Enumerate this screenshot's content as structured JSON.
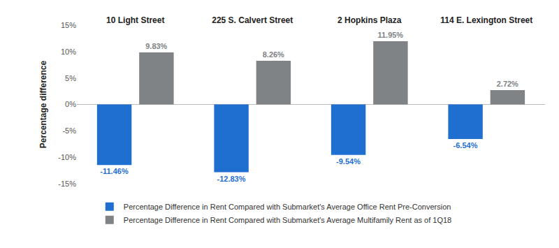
{
  "chart_data": {
    "type": "bar",
    "categories": [
      "10 Light Street",
      "225 S. Calvert Street",
      "2 Hopkins Plaza",
      "114 E. Lexington Street"
    ],
    "series": [
      {
        "name": "Percentage Difference in Rent Compared with Submarket's Average Office Rent Pre-Conversion",
        "color": "#1f6fd1",
        "values": [
          -11.46,
          -12.83,
          -9.54,
          -6.54
        ],
        "value_labels": [
          "-11.46%",
          "-12.83%",
          "-9.54%",
          "-6.54%"
        ]
      },
      {
        "name": "Percentage Difference in Rent Compared with Submarket's Average Multifamily Rent as of 1Q18",
        "color": "#808386",
        "values": [
          9.83,
          8.26,
          11.95,
          2.72
        ],
        "value_labels": [
          "9.83%",
          "8.26%",
          "11.95%",
          "2.72%"
        ]
      }
    ],
    "ylabel": "Percentage difference",
    "ylim": [
      -15,
      15
    ],
    "yticks": [
      {
        "value": -15,
        "label": "-15%"
      },
      {
        "value": -10,
        "label": "-10%"
      },
      {
        "value": -5,
        "label": "-5%"
      },
      {
        "value": 0,
        "label": "0%"
      },
      {
        "value": 5,
        "label": "5%"
      },
      {
        "value": 10,
        "label": "10%"
      },
      {
        "value": 15,
        "label": "15%"
      }
    ],
    "grid": false,
    "legend": "bottom",
    "data_labels": true
  }
}
